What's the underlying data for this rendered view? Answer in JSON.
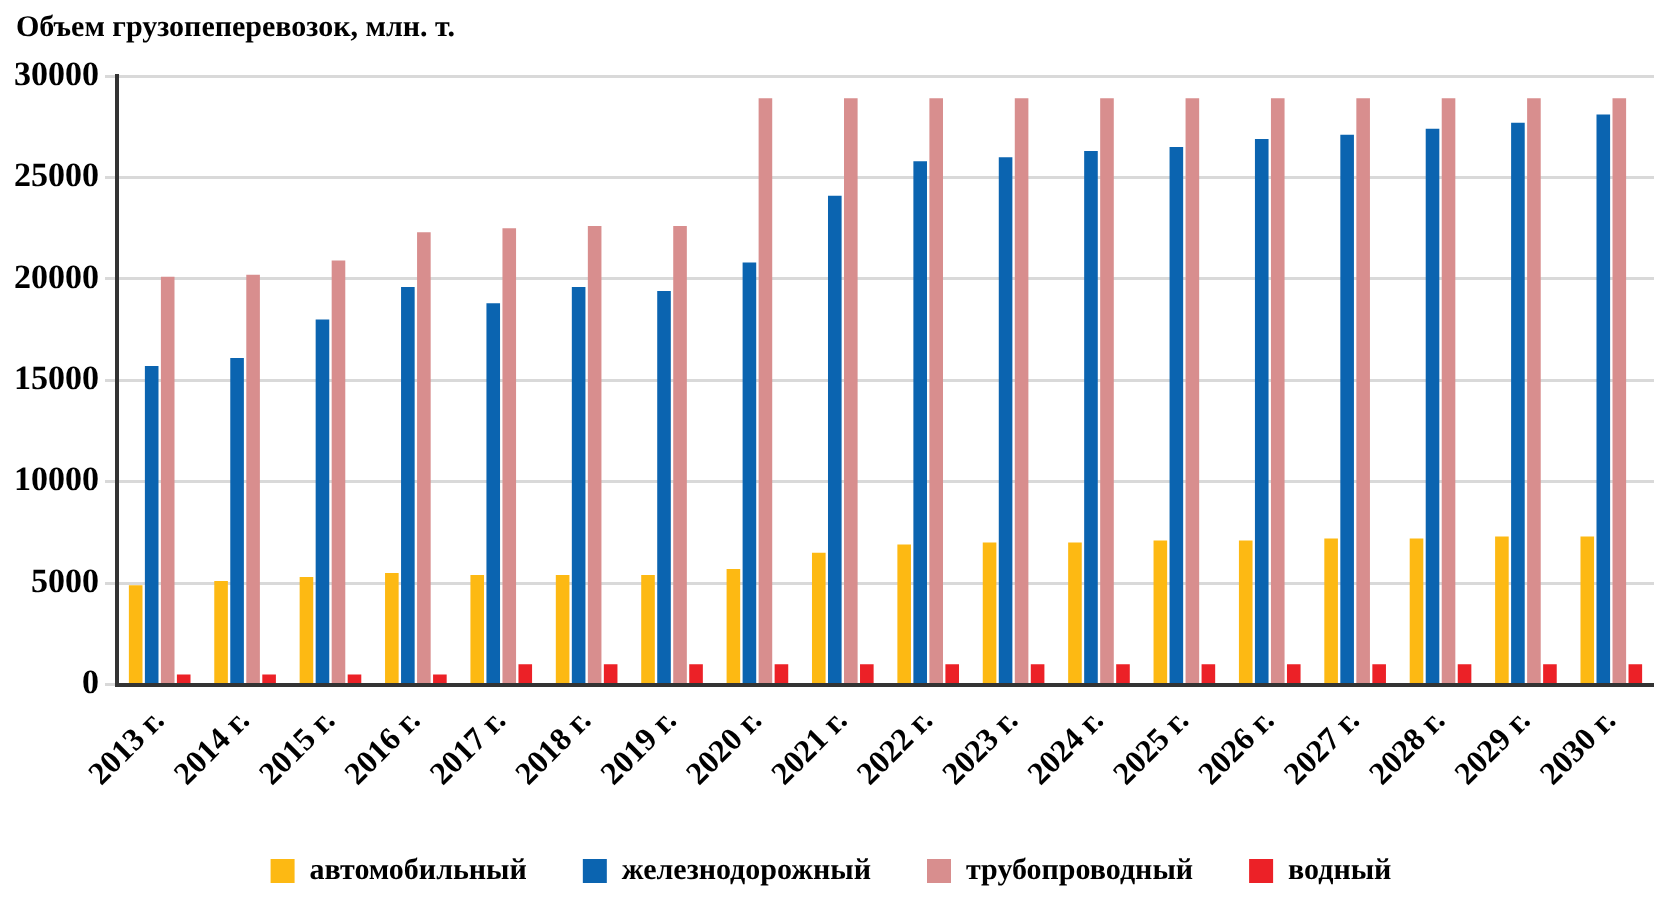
{
  "chart_data": {
    "type": "bar",
    "title": "Объем грузопеперевозок, млн. т.",
    "categories": [
      "2013 г.",
      "2014 г.",
      "2015 г.",
      "2016 г.",
      "2017 г.",
      "2018 г.",
      "2019 г.",
      "2020 г.",
      "2021 г.",
      "2022 г.",
      "2023 г.",
      "2024 г.",
      "2025 г.",
      "2026 г.",
      "2027 г.",
      "2028 г.",
      "2029 г.",
      "2030 г."
    ],
    "series": [
      {
        "name": "автомобильный",
        "color": "#fdb913",
        "values": [
          4900,
          5100,
          5300,
          5500,
          5400,
          5400,
          5400,
          5700,
          6500,
          6900,
          7000,
          7000,
          7100,
          7100,
          7200,
          7200,
          7300,
          7300
        ]
      },
      {
        "name": "железнодорожный",
        "color": "#0b64b0",
        "values": [
          15700,
          16100,
          18000,
          19600,
          18800,
          19600,
          19400,
          20800,
          24100,
          25800,
          26000,
          26300,
          26500,
          26900,
          27100,
          27400,
          27700,
          28100
        ]
      },
      {
        "name": "трубопроводный",
        "color": "#d88e8e",
        "values": [
          20100,
          20200,
          20900,
          22300,
          22500,
          22600,
          22600,
          28900,
          28900,
          28900,
          28900,
          28900,
          28900,
          28900,
          28900,
          28900,
          28900,
          28900
        ]
      },
      {
        "name": "водный",
        "color": "#ec2127",
        "values": [
          500,
          500,
          500,
          500,
          1000,
          1000,
          1000,
          1000,
          1000,
          1000,
          1000,
          1000,
          1000,
          1000,
          1000,
          1000,
          1000,
          1000
        ]
      }
    ],
    "ylim": [
      0,
      30000
    ],
    "yticks": [
      0,
      5000,
      10000,
      15000,
      20000,
      25000,
      30000
    ],
    "grid": "y",
    "legend": "bottom"
  }
}
